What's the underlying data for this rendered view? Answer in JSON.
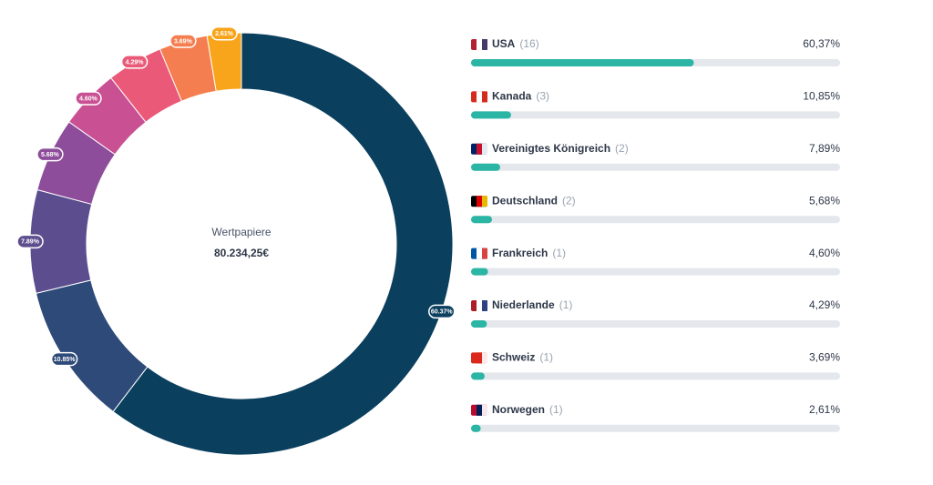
{
  "chart_data": [
    {
      "type": "donut",
      "center_label": "Wertpapiere",
      "center_value": "80.234,25€",
      "values": [
        60.37,
        10.85,
        7.89,
        5.68,
        4.6,
        4.29,
        3.69,
        2.61
      ],
      "value_labels": [
        "60.37%",
        "10.85%",
        "7.89%",
        "5.68%",
        "4.60%",
        "4.29%",
        "3.69%",
        "2.61%"
      ],
      "colors": [
        "#0b3f5e",
        "#2e4a78",
        "#5c4d8e",
        "#8d4d9b",
        "#c95093",
        "#ea5a78",
        "#f47e4f",
        "#f9a51c"
      ]
    },
    {
      "type": "hbar",
      "categories": [
        "USA",
        "Kanada",
        "Vereinigtes Königreich",
        "Deutschland",
        "Frankreich",
        "Niederlande",
        "Schweiz",
        "Norwegen"
      ],
      "counts": [
        "(16)",
        "(3)",
        "(2)",
        "(2)",
        "(1)",
        "(1)",
        "(1)",
        "(1)"
      ],
      "values": [
        60.37,
        10.85,
        7.89,
        5.68,
        4.6,
        4.29,
        3.69,
        2.61
      ],
      "value_labels": [
        "60,37%",
        "10,85%",
        "7,89%",
        "5,68%",
        "4,60%",
        "4,29%",
        "3,69%",
        "2,61%"
      ],
      "xlim": [
        0,
        100
      ],
      "color": "#2bb5a4",
      "track_color": "#e4e7eb"
    }
  ]
}
